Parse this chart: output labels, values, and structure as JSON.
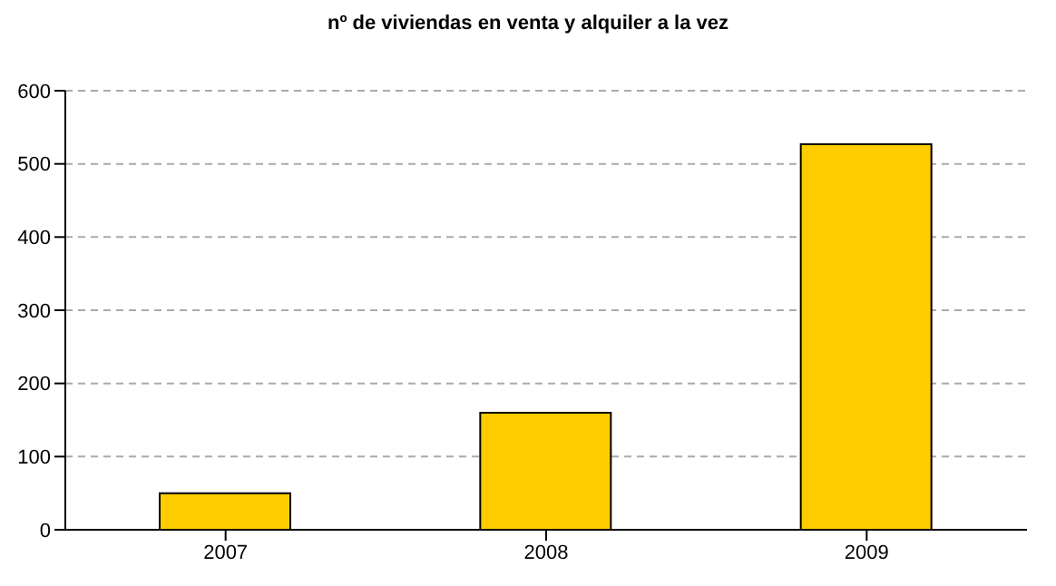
{
  "chart_data": {
    "type": "bar",
    "title": "nº de viviendas en venta y alquiler a la vez",
    "categories": [
      "2007",
      "2008",
      "2009"
    ],
    "values": [
      50,
      160,
      527
    ],
    "color": "#ffcc00",
    "ylim": [
      0,
      600
    ],
    "yticks": [
      0,
      100,
      200,
      300,
      400,
      500,
      600
    ],
    "grid": "y"
  }
}
